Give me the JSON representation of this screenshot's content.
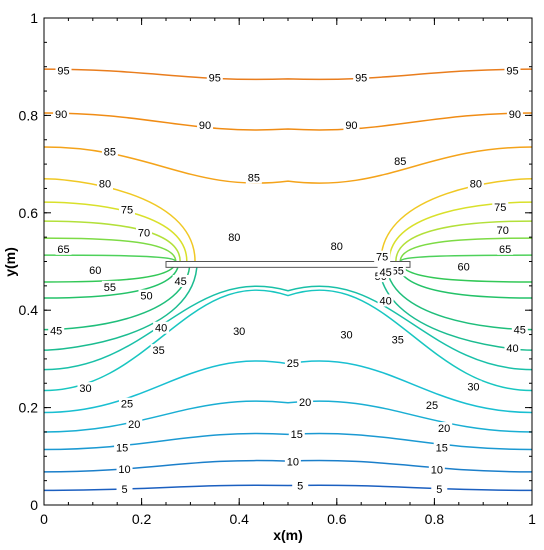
{
  "chart_data": {
    "type": "line",
    "subtype": "contour",
    "xlabel": "x(m)",
    "ylabel": "y(m)",
    "xlim": [
      0,
      1
    ],
    "ylim": [
      0,
      1
    ],
    "x_ticks": [
      "0",
      "0.2",
      "0.4",
      "0.6",
      "0.8",
      "1"
    ],
    "y_ticks": [
      "0",
      "0.2",
      "0.4",
      "0.6",
      "0.8",
      "1"
    ],
    "grid": false,
    "obstacle": {
      "x": [
        0.25,
        0.75
      ],
      "y": [
        0.488,
        0.5
      ]
    },
    "upper_levels": [
      {
        "level": 95,
        "color": "#e97d1d",
        "ends": [
          0.895,
          0.895
        ],
        "mid": 0.875,
        "labels": [
          {
            "x": 0.04,
            "y": 0.892
          },
          {
            "x": 0.35,
            "y": 0.878
          },
          {
            "x": 0.65,
            "y": 0.878
          },
          {
            "x": 0.96,
            "y": 0.892
          }
        ]
      },
      {
        "level": 90,
        "color": "#f08c15",
        "ends": [
          0.805,
          0.805
        ],
        "mid": 0.772,
        "labels": [
          {
            "x": 0.035,
            "y": 0.803
          },
          {
            "x": 0.33,
            "y": 0.78
          },
          {
            "x": 0.63,
            "y": 0.78
          },
          {
            "x": 0.965,
            "y": 0.803
          }
        ]
      },
      {
        "level": 85,
        "color": "#f4a31a",
        "ends": [
          0.735,
          0.735
        ],
        "mid": 0.665,
        "labels": [
          {
            "x": 0.135,
            "y": 0.726
          },
          {
            "x": 0.43,
            "y": 0.672
          },
          {
            "x": 0.73,
            "y": 0.706
          }
        ]
      },
      {
        "level": 80,
        "color": "#f0c824",
        "ends": [
          0.67,
          0.67
        ],
        "mid": 0.5,
        "labels": [
          {
            "x": 0.125,
            "y": 0.66
          },
          {
            "x": 0.39,
            "y": 0.55
          },
          {
            "x": 0.6,
            "y": 0.532
          },
          {
            "x": 0.885,
            "y": 0.66
          }
        ]
      },
      {
        "level": 75,
        "color": "#d9e02a",
        "ends": [
          0.622,
          0.622
        ],
        "mid": 0.5,
        "labels": [
          {
            "x": 0.17,
            "y": 0.607
          },
          {
            "x": 0.935,
            "y": 0.612
          },
          {
            "x": 0.693,
            "y": 0.51
          }
        ]
      },
      {
        "level": 70,
        "color": "#b3e03a",
        "ends": [
          0.583,
          0.583
        ],
        "mid": 0.5,
        "labels": [
          {
            "x": 0.205,
            "y": 0.56
          },
          {
            "x": 0.94,
            "y": 0.565
          }
        ]
      },
      {
        "level": 65,
        "color": "#7ddb45",
        "ends": [
          0.548,
          0.548
        ],
        "mid": 0.5,
        "labels": [
          {
            "x": 0.04,
            "y": 0.526
          },
          {
            "x": 0.945,
            "y": 0.526
          }
        ]
      },
      {
        "level": 60,
        "color": "#4ed15a",
        "ends": [
          0.513,
          0.513
        ],
        "mid": 0.5,
        "labels": [
          {
            "x": 0.105,
            "y": 0.483
          },
          {
            "x": 0.86,
            "y": 0.49
          }
        ]
      }
    ],
    "lower_levels": [
      {
        "level": 55,
        "color": "#33c857",
        "ends": [
          0.458,
          0.458
        ],
        "mid": 0.5,
        "labels": [
          {
            "x": 0.135,
            "y": 0.448
          },
          {
            "x": 0.725,
            "y": 0.482
          }
        ]
      },
      {
        "level": 50,
        "color": "#24c268",
        "ends": [
          0.425,
          0.425
        ],
        "mid": 0.5,
        "labels": [
          {
            "x": 0.21,
            "y": 0.43
          },
          {
            "x": 0.69,
            "y": 0.47
          }
        ]
      },
      {
        "level": 45,
        "color": "#1fbe7b",
        "ends": [
          0.36,
          0.36
        ],
        "mid": 0.5,
        "labels": [
          {
            "x": 0.025,
            "y": 0.358
          },
          {
            "x": 0.28,
            "y": 0.46
          },
          {
            "x": 0.975,
            "y": 0.36
          },
          {
            "x": 0.7,
            "y": 0.478
          }
        ]
      },
      {
        "level": 40,
        "color": "#1bbc90",
        "ends": [
          0.318,
          0.318
        ],
        "mid": 0.5,
        "labels": [
          {
            "x": 0.24,
            "y": 0.364
          },
          {
            "x": 0.7,
            "y": 0.42
          },
          {
            "x": 0.96,
            "y": 0.322
          }
        ]
      },
      {
        "level": 35,
        "color": "#19c0a8",
        "ends": [
          0.278,
          0.278
        ],
        "mid": 0.44,
        "labels": [
          {
            "x": 0.235,
            "y": 0.318
          },
          {
            "x": 0.725,
            "y": 0.34
          }
        ]
      },
      {
        "level": 30,
        "color": "#18c6c0",
        "ends": [
          0.235,
          0.235
        ],
        "mid": 0.43,
        "labels": [
          {
            "x": 0.085,
            "y": 0.24
          },
          {
            "x": 0.4,
            "y": 0.357
          },
          {
            "x": 0.62,
            "y": 0.35
          },
          {
            "x": 0.88,
            "y": 0.243
          }
        ]
      },
      {
        "level": 25,
        "color": "#19bfd1",
        "ends": [
          0.19,
          0.19
        ],
        "mid": 0.29,
        "labels": [
          {
            "x": 0.17,
            "y": 0.208
          },
          {
            "x": 0.51,
            "y": 0.292
          },
          {
            "x": 0.795,
            "y": 0.205
          }
        ]
      },
      {
        "level": 20,
        "color": "#1aaed3",
        "ends": [
          0.15,
          0.15
        ],
        "mid": 0.21,
        "labels": [
          {
            "x": 0.185,
            "y": 0.166
          },
          {
            "x": 0.535,
            "y": 0.212
          },
          {
            "x": 0.82,
            "y": 0.158
          }
        ]
      },
      {
        "level": 15,
        "color": "#1b99d2",
        "ends": [
          0.114,
          0.114
        ],
        "mid": 0.145,
        "labels": [
          {
            "x": 0.16,
            "y": 0.118
          },
          {
            "x": 0.518,
            "y": 0.146
          },
          {
            "x": 0.815,
            "y": 0.118
          }
        ]
      },
      {
        "level": 10,
        "color": "#1b7fca",
        "ends": [
          0.068,
          0.068
        ],
        "mid": 0.09,
        "labels": [
          {
            "x": 0.165,
            "y": 0.074
          },
          {
            "x": 0.51,
            "y": 0.089
          },
          {
            "x": 0.805,
            "y": 0.073
          }
        ]
      },
      {
        "level": 5,
        "color": "#1b5fc0",
        "ends": [
          0.03,
          0.03
        ],
        "mid": 0.04,
        "labels": [
          {
            "x": 0.165,
            "y": 0.033
          },
          {
            "x": 0.525,
            "y": 0.04
          },
          {
            "x": 0.81,
            "y": 0.033
          }
        ]
      }
    ]
  }
}
